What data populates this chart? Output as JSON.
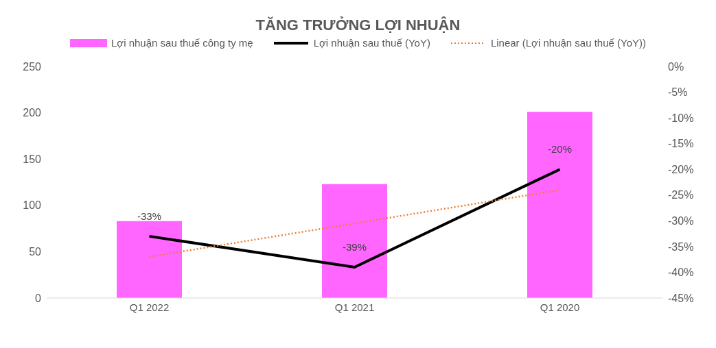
{
  "chart_data": {
    "type": "bar",
    "title": "TĂNG TRƯỞNG LỢI NHUẬN",
    "categories": [
      "Q1 2022",
      "Q1 2021",
      "Q1 2020"
    ],
    "series": [
      {
        "name": "Lợi nhuận sau thuế công ty mẹ",
        "color": "#ff66ff",
        "values": [
          83,
          123,
          201
        ]
      },
      {
        "name": "Lợi nhuận sau thuế (YoY)",
        "type": "line",
        "axis": "y2",
        "color": "#000000",
        "values": [
          -33,
          -39,
          -20
        ],
        "value_labels": [
          "-33%",
          "-39%",
          "-20%"
        ]
      },
      {
        "name": "Linear (Lợi nhuận sau thuế (YoY))",
        "type": "line",
        "axis": "y2",
        "color": "#ed7d31",
        "line_style": "dotted",
        "values": [
          -37,
          -30.5,
          -24
        ]
      }
    ],
    "ylim": [
      0,
      250
    ],
    "yticks": [
      0,
      50,
      100,
      150,
      200,
      250
    ],
    "y2lim": [
      -45,
      0
    ],
    "y2ticks": [
      {
        "value": 0,
        "label": "0%"
      },
      {
        "value": -5,
        "label": "-5%"
      },
      {
        "value": -10,
        "label": "-10%"
      },
      {
        "value": -15,
        "label": "-15%"
      },
      {
        "value": -20,
        "label": "-20%"
      },
      {
        "value": -25,
        "label": "-25%"
      },
      {
        "value": -30,
        "label": "-30%"
      },
      {
        "value": -35,
        "label": "-35%"
      },
      {
        "value": -40,
        "label": "-40%"
      },
      {
        "value": -45,
        "label": "-45%"
      }
    ],
    "grid": false,
    "legend": "top",
    "marker": "none"
  }
}
